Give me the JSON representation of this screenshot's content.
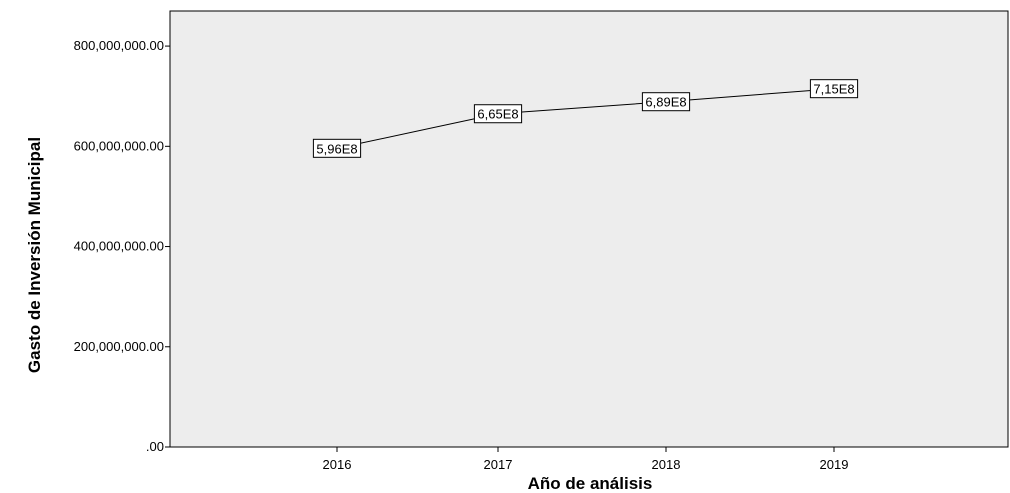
{
  "chart_data": {
    "type": "line",
    "title": "",
    "xlabel": "Año de análisis",
    "ylabel": "Gasto de Inversión Municipal",
    "categories": [
      "2016",
      "2017",
      "2018",
      "2019"
    ],
    "values": [
      596000000,
      665000000,
      689000000,
      715000000
    ],
    "data_labels": [
      "5,96E8",
      "6,65E8",
      "6,89E8",
      "7,15E8"
    ],
    "yticks": [
      0,
      200000000,
      400000000,
      600000000,
      800000000
    ],
    "ytick_labels": [
      ".00",
      "200,000,000.00",
      "400,000,000.00",
      "600,000,000.00",
      "800,000,000.00"
    ],
    "ylim": [
      0,
      870000000
    ],
    "grid": false,
    "legend": "none",
    "colors": {
      "plot_background": "#ededed",
      "line": "#000000",
      "label_fill": "#ffffff"
    }
  }
}
